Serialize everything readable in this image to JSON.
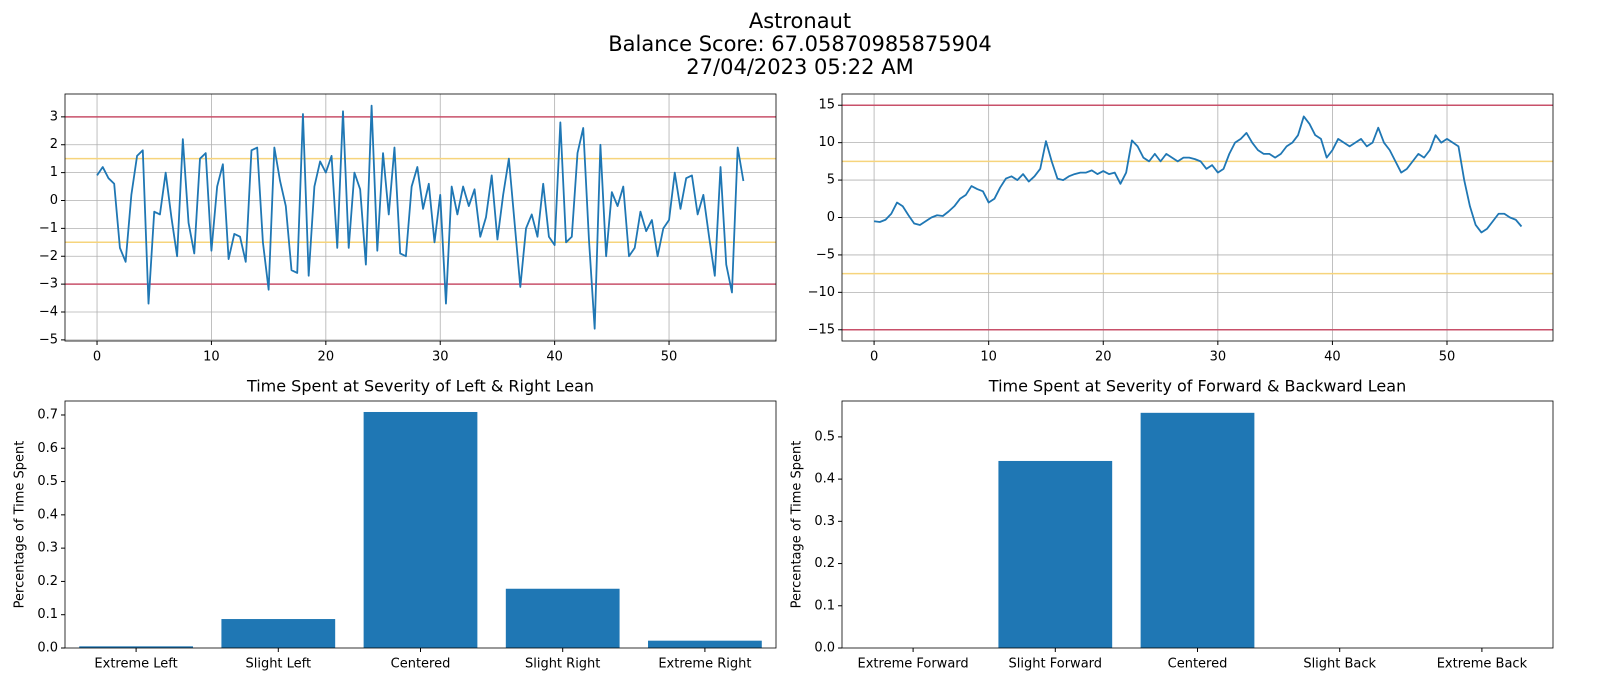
{
  "suptitle": [
    "Astronaut",
    "Balance Score: 67.05870985875904",
    "27/04/2023 05:22 AM"
  ],
  "chart_data": [
    {
      "type": "line",
      "color": "#1f77b4",
      "grid": true,
      "x": [
        0,
        0.5,
        1,
        1.5,
        2,
        2.5,
        3,
        3.5,
        4,
        4.5,
        5,
        5.5,
        6,
        6.5,
        7,
        7.5,
        8,
        8.5,
        9,
        9.5,
        10,
        10.5,
        11,
        11.5,
        12,
        12.5,
        13,
        13.5,
        14,
        14.5,
        15,
        15.5,
        16,
        16.5,
        17,
        17.5,
        18,
        18.5,
        19,
        19.5,
        20,
        20.5,
        21,
        21.5,
        22,
        22.5,
        23,
        23.5,
        24,
        24.5,
        25,
        25.5,
        26,
        26.5,
        27,
        27.5,
        28,
        28.5,
        29,
        29.5,
        30,
        30.5,
        31,
        31.5,
        32,
        32.5,
        33,
        33.5,
        34,
        34.5,
        35,
        35.5,
        36,
        36.5,
        37,
        37.5,
        38,
        38.5,
        39,
        39.5,
        40,
        40.5,
        41,
        41.5,
        42,
        42.5,
        43,
        43.5,
        44,
        44.5,
        45,
        45.5,
        46,
        46.5,
        47,
        47.5,
        48,
        48.5,
        49,
        49.5,
        50,
        50.5,
        51,
        51.5,
        52,
        52.5,
        53,
        53.5,
        54,
        54.5,
        55,
        55.5,
        56,
        56.5
      ],
      "values": [
        0.9,
        1.2,
        0.8,
        0.6,
        -1.7,
        -2.2,
        0.2,
        1.6,
        1.8,
        -3.7,
        -0.4,
        -0.5,
        1.0,
        -0.6,
        -2.0,
        2.2,
        -0.8,
        -1.9,
        1.5,
        1.7,
        -1.8,
        0.5,
        1.3,
        -2.1,
        -1.2,
        -1.3,
        -2.2,
        1.8,
        1.9,
        -1.5,
        -3.2,
        1.9,
        0.7,
        -0.2,
        -2.5,
        -2.6,
        3.1,
        -2.7,
        0.5,
        1.4,
        1.0,
        1.6,
        -1.7,
        3.2,
        -1.7,
        1.0,
        0.4,
        -2.3,
        3.4,
        -1.8,
        1.7,
        -0.5,
        1.9,
        -1.9,
        -2.0,
        0.5,
        1.2,
        -0.3,
        0.6,
        -1.5,
        0.2,
        -3.7,
        0.5,
        -0.5,
        0.5,
        -0.2,
        0.4,
        -1.3,
        -0.6,
        0.9,
        -1.4,
        0.2,
        1.5,
        -0.8,
        -3.1,
        -1.0,
        -0.5,
        -1.3,
        0.6,
        -1.3,
        -1.6,
        2.8,
        -1.5,
        -1.3,
        1.7,
        2.6,
        -1.4,
        -4.6,
        2.0,
        -2.0,
        0.3,
        -0.2,
        0.5,
        -2.0,
        -1.7,
        -0.4,
        -1.1,
        -0.7,
        -2.0,
        -1.0,
        -0.7,
        1.0,
        -0.3,
        0.8,
        0.9,
        -0.5,
        0.2,
        -1.3,
        -2.7,
        1.2,
        -2.3,
        -3.3,
        1.9,
        0.7
      ],
      "xlim": [
        -2.8,
        59.35
      ],
      "xticks": [
        0,
        10,
        20,
        30,
        40,
        50
      ],
      "ylim": [
        -5.04,
        3.82
      ],
      "yticks": [
        {
          "value": -5,
          "label": "−5"
        },
        {
          "value": -4,
          "label": "−4"
        },
        {
          "value": -3,
          "label": "−3"
        },
        {
          "value": -2,
          "label": "−2"
        },
        {
          "value": -1,
          "label": "−1"
        },
        0,
        1,
        2,
        3
      ],
      "hlines": [
        {
          "value": 3,
          "color": "#c8506a"
        },
        {
          "value": -3,
          "color": "#c8506a"
        },
        {
          "value": 1.5,
          "color": "#f6d47c"
        },
        {
          "value": -1.5,
          "color": "#f6d47c"
        }
      ]
    },
    {
      "type": "line",
      "color": "#1f77b4",
      "grid": true,
      "x": [
        0,
        0.5,
        1,
        1.5,
        2,
        2.5,
        3,
        3.5,
        4,
        4.5,
        5,
        5.5,
        6,
        6.5,
        7,
        7.5,
        8,
        8.5,
        9,
        9.5,
        10,
        10.5,
        11,
        11.5,
        12,
        12.5,
        13,
        13.5,
        14,
        14.5,
        15,
        15.5,
        16,
        16.5,
        17,
        17.5,
        18,
        18.5,
        19,
        19.5,
        20,
        20.5,
        21,
        21.5,
        22,
        22.5,
        23,
        23.5,
        24,
        24.5,
        25,
        25.5,
        26,
        26.5,
        27,
        27.5,
        28,
        28.5,
        29,
        29.5,
        30,
        30.5,
        31,
        31.5,
        32,
        32.5,
        33,
        33.5,
        34,
        34.5,
        35,
        35.5,
        36,
        36.5,
        37,
        37.5,
        38,
        38.5,
        39,
        39.5,
        40,
        40.5,
        41,
        41.5,
        42,
        42.5,
        43,
        43.5,
        44,
        44.5,
        45,
        45.5,
        46,
        46.5,
        47,
        47.5,
        48,
        48.5,
        49,
        49.5,
        50,
        50.5,
        51,
        51.5,
        52,
        52.5,
        53,
        53.5,
        54,
        54.5,
        55,
        55.5,
        56,
        56.5
      ],
      "values": [
        -0.5,
        -0.6,
        -0.3,
        0.5,
        2.0,
        1.5,
        0.3,
        -0.8,
        -1.0,
        -0.5,
        0.0,
        0.3,
        0.2,
        0.8,
        1.5,
        2.5,
        3.0,
        4.2,
        3.8,
        3.5,
        2.0,
        2.5,
        4.0,
        5.2,
        5.5,
        5.0,
        5.8,
        4.8,
        5.5,
        6.5,
        10.2,
        7.5,
        5.2,
        5.0,
        5.5,
        5.8,
        6.0,
        6.0,
        6.3,
        5.8,
        6.2,
        5.8,
        6.0,
        4.5,
        6.0,
        10.3,
        9.5,
        8.0,
        7.5,
        8.5,
        7.5,
        8.5,
        8.0,
        7.5,
        8.0,
        8.0,
        7.8,
        7.5,
        6.5,
        7.0,
        6.0,
        6.5,
        8.5,
        10.0,
        10.5,
        11.3,
        10.0,
        9.0,
        8.5,
        8.5,
        8.0,
        8.5,
        9.5,
        10.0,
        11.0,
        13.5,
        12.5,
        11.0,
        10.5,
        8.0,
        9.0,
        10.5,
        10.0,
        9.5,
        10.0,
        10.5,
        9.5,
        10.0,
        12.0,
        10.0,
        9.0,
        7.5,
        6.0,
        6.5,
        7.5,
        8.5,
        8.0,
        9.0,
        11.0,
        10.0,
        10.5,
        10.0,
        9.5,
        5.0,
        1.5,
        -1.0,
        -2.0,
        -1.5,
        -0.5,
        0.5,
        0.5,
        0.0,
        -0.3,
        -1.2
      ],
      "xlim": [
        -2.8,
        59.25
      ],
      "xticks": [
        0,
        10,
        20,
        30,
        40,
        50
      ],
      "ylim": [
        -16.5,
        16.5
      ],
      "yticks": [
        {
          "value": -15,
          "label": "−15"
        },
        {
          "value": -10,
          "label": "−10"
        },
        {
          "value": -5,
          "label": "−5"
        },
        0,
        5,
        10,
        15
      ],
      "hlines": [
        {
          "value": 15,
          "color": "#c8506a"
        },
        {
          "value": -15,
          "color": "#c8506a"
        },
        {
          "value": 7.5,
          "color": "#f6d47c"
        },
        {
          "value": -7.5,
          "color": "#f6d47c"
        }
      ]
    },
    {
      "type": "bar",
      "title": "Time Spent at Severity of Left & Right Lean",
      "ylabel": "Percentage of Time Spent",
      "color": "#1f77b4",
      "grid": false,
      "categories": [
        "Extreme Left",
        "Slight Left",
        "Centered",
        "Slight Right",
        "Extreme Right"
      ],
      "values": [
        0.005,
        0.087,
        0.709,
        0.178,
        0.022
      ],
      "ylim": [
        0,
        0.742
      ],
      "yticks": [
        {
          "value": 0,
          "label": "0.0"
        },
        0.1,
        0.2,
        0.3,
        0.4,
        0.5,
        0.6,
        0.7
      ]
    },
    {
      "type": "bar",
      "title": "Time Spent at Severity of Forward & Backward Lean",
      "ylabel": "Percentage of Time Spent",
      "color": "#1f77b4",
      "grid": false,
      "categories": [
        "Extreme Forward",
        "Slight Forward",
        "Centered",
        "Slight Back",
        "Extreme Back"
      ],
      "values": [
        0,
        0.443,
        0.557,
        0,
        0
      ],
      "ylim": [
        0,
        0.585
      ],
      "yticks": [
        {
          "value": 0,
          "label": "0.0"
        },
        0.1,
        0.2,
        0.3,
        0.4,
        0.5
      ]
    }
  ]
}
